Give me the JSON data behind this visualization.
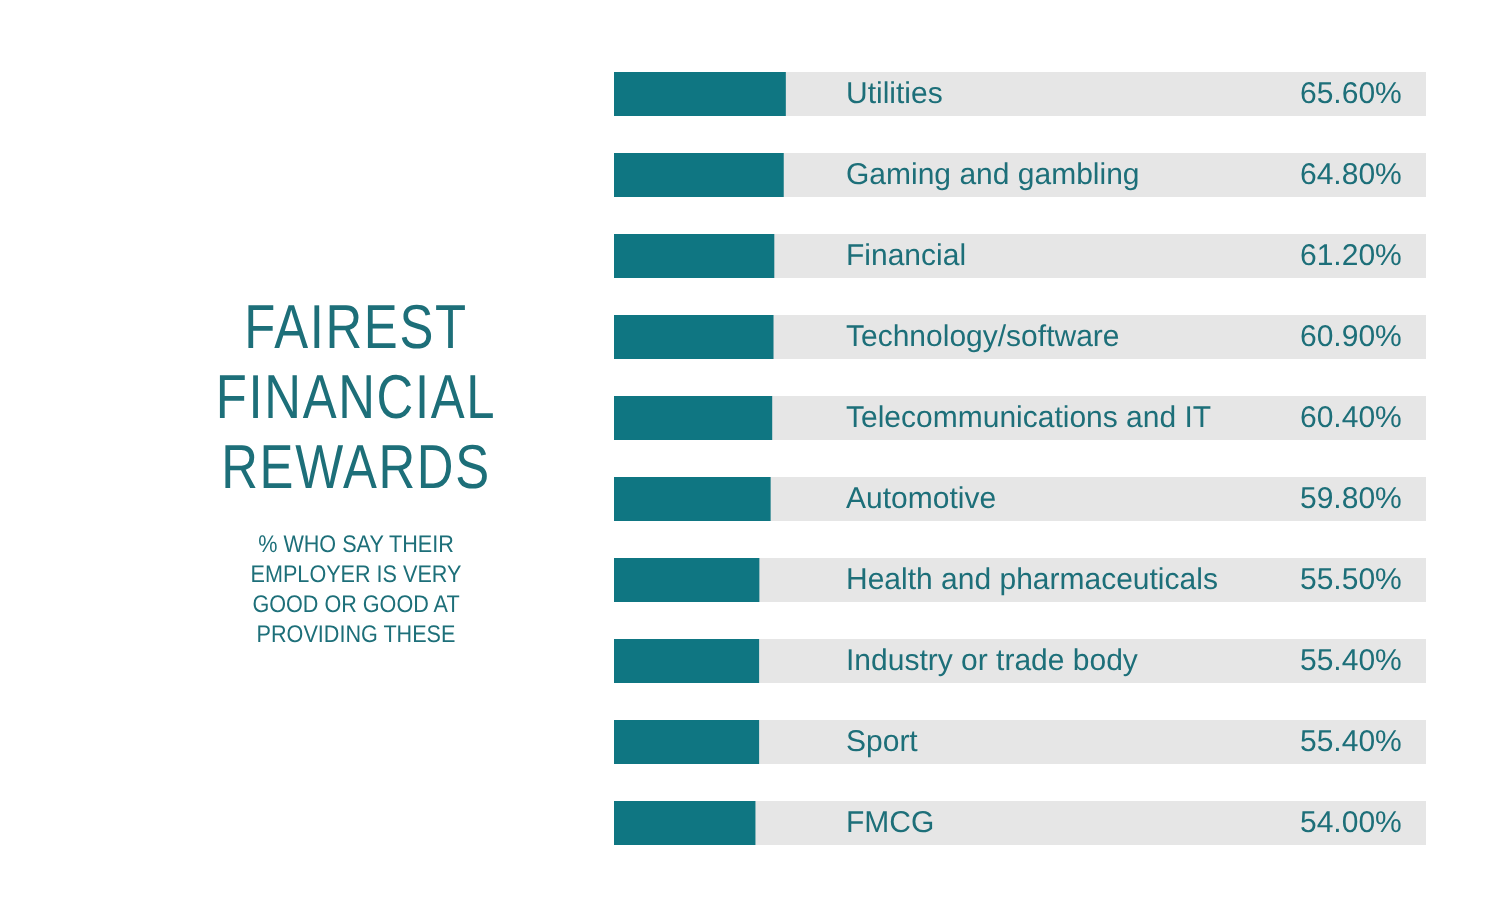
{
  "chart_data": {
    "type": "bar",
    "orientation": "horizontal",
    "title": "FAIREST FINANCIAL REWARDS",
    "subtitle": "% WHO SAY THEIR EMPLOYER IS VERY GOOD OR GOOD AT PROVIDING THESE",
    "categories": [
      "Utilities",
      "Gaming and gambling",
      "Financial",
      "Technology/software",
      "Telecommunications and IT",
      "Automotive",
      "Health and pharmaceuticals",
      "Industry or trade body",
      "Sport",
      "FMCG"
    ],
    "values": [
      65.6,
      64.8,
      61.2,
      60.9,
      60.4,
      59.8,
      55.5,
      55.4,
      55.4,
      54.0
    ],
    "value_labels": [
      "65.60%",
      "64.80%",
      "61.20%",
      "60.90%",
      "60.40%",
      "59.80%",
      "55.50%",
      "55.40%",
      "55.40%",
      "54.00%"
    ],
    "color": "#0f7682",
    "xlim": [
      0,
      310
    ],
    "tick_labels": false,
    "grid": false,
    "legend": false
  }
}
